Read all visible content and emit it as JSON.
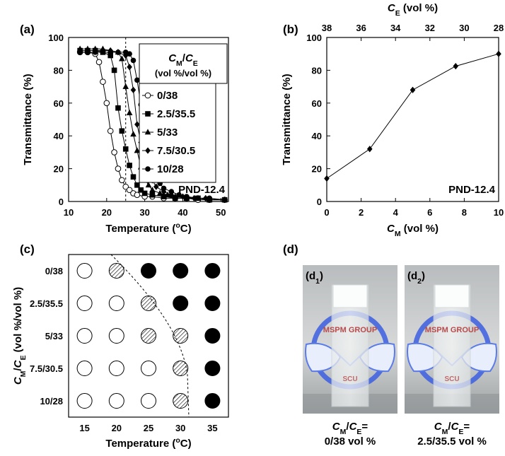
{
  "chart_data": [
    {
      "type": "line",
      "panel_label": "(a)",
      "xlim": [
        10,
        52
      ],
      "xticks": [
        10,
        20,
        30,
        40,
        50
      ],
      "ylim": [
        0,
        100
      ],
      "yticks": [
        0,
        20,
        40,
        60,
        80,
        100
      ],
      "x_label": [
        {
          "t": "Temperature ("
        },
        {
          "t": "o",
          "sup": true
        },
        {
          "t": "C)"
        }
      ],
      "y_label": [
        {
          "t": "Transmittance (%)"
        }
      ],
      "legend_title": [
        {
          "t": "C",
          "i": true
        },
        {
          "t": "M",
          "sub": true
        },
        {
          "t": "/"
        },
        {
          "t": "C",
          "i": true
        },
        {
          "t": "E",
          "sub": true
        }
      ],
      "legend_subtitle": "(vol %/vol %)",
      "annotation": "PND-12.4",
      "vline": 25,
      "series": [
        {
          "name": "0/38",
          "marker": "open-circle",
          "color": "#000000",
          "x": [
            13,
            15,
            17,
            18,
            19,
            20,
            21,
            22,
            23,
            24,
            25,
            26,
            27,
            28,
            30,
            32,
            35,
            38,
            41,
            44,
            47,
            51
          ],
          "values": [
            91,
            91,
            90,
            85,
            73,
            60,
            43,
            30,
            20,
            13,
            9,
            7,
            5,
            4,
            3,
            3,
            2,
            2,
            2,
            1,
            1,
            1
          ]
        },
        {
          "name": "2.5/35.5",
          "marker": "square",
          "color": "#000000",
          "x": [
            13,
            15,
            17,
            19,
            21,
            22,
            23,
            24,
            25,
            26,
            27,
            28,
            29,
            30,
            32,
            35,
            38,
            41,
            44,
            47,
            51
          ],
          "values": [
            92,
            92,
            92,
            91,
            89,
            80,
            57,
            43,
            32,
            22,
            15,
            10,
            7,
            5,
            4,
            3,
            2,
            2,
            2,
            1,
            1
          ]
        },
        {
          "name": "5/33",
          "marker": "triangle",
          "color": "#000000",
          "x": [
            13,
            15,
            17,
            19,
            21,
            23,
            24,
            25,
            26,
            27,
            28,
            29,
            30,
            31,
            32,
            34,
            36,
            38,
            41,
            44,
            47,
            51
          ],
          "values": [
            93,
            93,
            93,
            93,
            92,
            91,
            87,
            70,
            54,
            41,
            31,
            21,
            14,
            10,
            7,
            5,
            4,
            3,
            2,
            2,
            1,
            1
          ]
        },
        {
          "name": "7.5/30.5",
          "marker": "diamond",
          "color": "#000000",
          "x": [
            13,
            15,
            17,
            19,
            21,
            23,
            25,
            26,
            27,
            28,
            29,
            30,
            31,
            32,
            33,
            35,
            37,
            40,
            43,
            46,
            51
          ],
          "values": [
            92,
            92,
            92,
            92,
            92,
            91,
            89,
            82,
            68,
            47,
            36,
            26,
            18,
            13,
            9,
            6,
            4,
            3,
            2,
            2,
            1
          ]
        },
        {
          "name": "10/28",
          "marker": "circle",
          "color": "#000000",
          "x": [
            13,
            15,
            17,
            19,
            21,
            23,
            25,
            26,
            27,
            28,
            29,
            30,
            31,
            32,
            33,
            34,
            35,
            37,
            39,
            41,
            44,
            47,
            51
          ],
          "values": [
            91,
            91,
            91,
            91,
            91,
            91,
            91,
            90,
            86,
            74,
            59,
            44,
            32,
            22,
            15,
            11,
            8,
            6,
            4,
            3,
            2,
            2,
            1
          ]
        }
      ]
    },
    {
      "type": "line",
      "panel_label": "(b)",
      "x": [
        0,
        2.5,
        5,
        7.5,
        10
      ],
      "xlim": [
        0,
        10
      ],
      "xticks": [
        0,
        2,
        4,
        6,
        8,
        10
      ],
      "ylim": [
        0,
        100
      ],
      "yticks": [
        0,
        20,
        40,
        60,
        80,
        100
      ],
      "x2lim": [
        38,
        28
      ],
      "x2ticks": [
        38,
        36,
        34,
        32,
        30,
        28
      ],
      "x_label": [
        {
          "t": "C",
          "i": true
        },
        {
          "t": "M",
          "sub": true
        },
        {
          "t": " (vol %)"
        }
      ],
      "x2_label": [
        {
          "t": "C",
          "i": true
        },
        {
          "t": "E",
          "sub": true
        },
        {
          "t": " (vol %)"
        }
      ],
      "y_label": [
        {
          "t": "Transmittance (%)"
        }
      ],
      "annotation": "PND-12.4",
      "series": [
        {
          "marker": "diamond",
          "color": "#000000",
          "values": [
            14,
            32,
            68,
            82.5,
            90
          ]
        }
      ]
    },
    {
      "type": "matrix",
      "panel_label": "(c)",
      "x": [
        15,
        20,
        25,
        30,
        35
      ],
      "rows": [
        "0/38",
        "2.5/35.5",
        "5/33",
        "7.5/30.5",
        "10/28"
      ],
      "x_label": [
        {
          "t": "Temperature ("
        },
        {
          "t": "o",
          "sup": true
        },
        {
          "t": "C)"
        }
      ],
      "y_label": [
        {
          "t": "C",
          "i": true
        },
        {
          "t": "M",
          "sub": true
        },
        {
          "t": "/"
        },
        {
          "t": "C",
          "i": true
        },
        {
          "t": "E",
          "sub": true
        },
        {
          "t": " (vol %/vol %)"
        }
      ],
      "cells": [
        [
          "open",
          "hatched",
          "filled",
          "filled",
          "filled"
        ],
        [
          "open",
          "open",
          "hatched",
          "filled",
          "filled"
        ],
        [
          "open",
          "open",
          "hatched",
          "hatched",
          "filled"
        ],
        [
          "open",
          "open",
          "open",
          "hatched",
          "filled"
        ],
        [
          "open",
          "open",
          "open",
          "hatched",
          "filled"
        ]
      ]
    }
  ],
  "photo_panel": {
    "panel_label": "(d)",
    "photos": [
      {
        "label": [
          {
            "t": "(d"
          },
          {
            "t": "1",
            "sub": true
          },
          {
            "t": ")"
          }
        ],
        "logo": "MSPM GROUP",
        "logo_sub": "SCU",
        "caption": [
          {
            "t": "C",
            "i": true
          },
          {
            "t": "M",
            "sub": true
          },
          {
            "t": "/"
          },
          {
            "t": "C",
            "i": true
          },
          {
            "t": "E",
            "sub": true
          },
          {
            "t": "="
          }
        ],
        "caption_2": "0/38 vol %"
      },
      {
        "label": [
          {
            "t": "(d"
          },
          {
            "t": "2",
            "sub": true
          },
          {
            "t": ")"
          }
        ],
        "logo": "MSPM GROUP",
        "logo_sub": "SCU",
        "caption": [
          {
            "t": "C",
            "i": true
          },
          {
            "t": "M",
            "sub": true
          },
          {
            "t": "/"
          },
          {
            "t": "C",
            "i": true
          },
          {
            "t": "E",
            "sub": true
          },
          {
            "t": "="
          }
        ],
        "caption_2": "2.5/35.5 vol %"
      }
    ]
  }
}
